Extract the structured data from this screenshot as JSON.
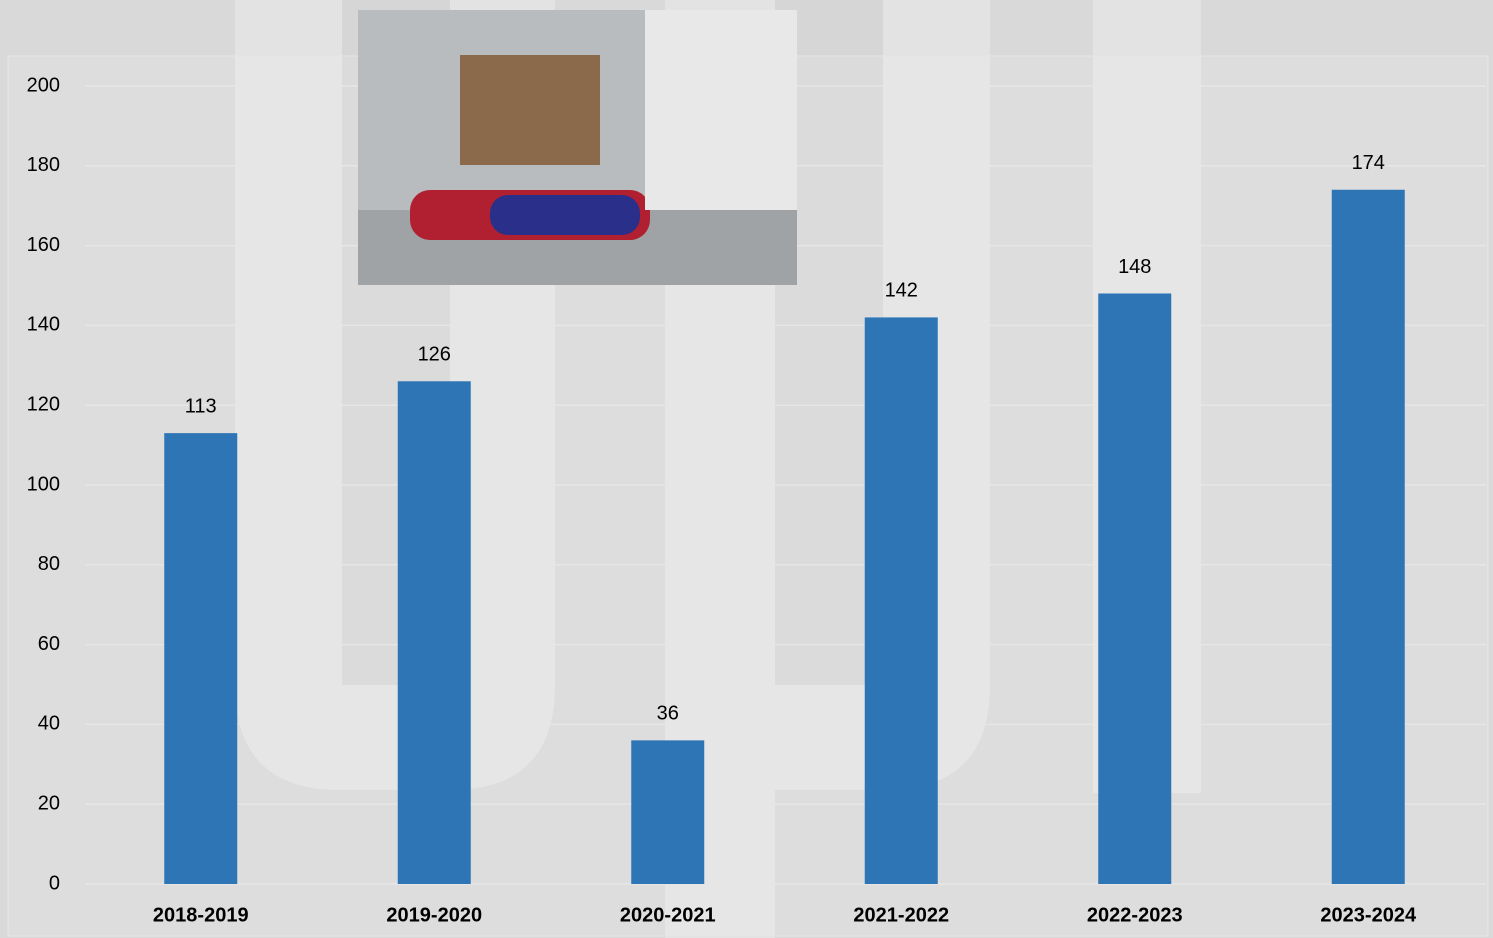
{
  "chart_data": {
    "type": "bar",
    "categories": [
      "2018-2019",
      "2019-2020",
      "2020-2021",
      "2021-2022",
      "2022-2023",
      "2023-2024"
    ],
    "values": [
      113,
      126,
      36,
      142,
      148,
      174
    ],
    "color": "#2e75b6",
    "ylim": [
      0,
      200
    ],
    "yticks": [
      0,
      20,
      40,
      60,
      80,
      100,
      120,
      140,
      160,
      180,
      200
    ],
    "grid": true
  }
}
